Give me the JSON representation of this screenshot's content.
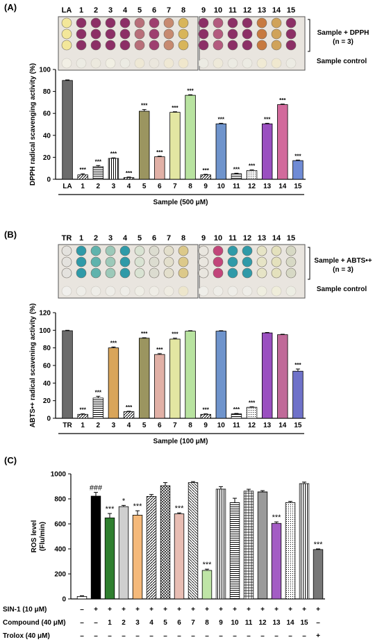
{
  "panels": {
    "a": "(A)",
    "b": "(B)",
    "c": "(C)"
  },
  "plate_a": {
    "columns": [
      "LA",
      "1",
      "2",
      "3",
      "4",
      "5",
      "6",
      "7",
      "8",
      "9",
      "10",
      "11",
      "12",
      "13",
      "14",
      "15"
    ],
    "note1": "Sample + DPPH",
    "note2": "(n = 3)",
    "note3": "Sample control",
    "well_colors": [
      "#f3e79a",
      "#8c2f66",
      "#8c2f66",
      "#8c2f66",
      "#8c2f66",
      "#b86f7a",
      "#9e3f6f",
      "#c78a70",
      "#d8b55a",
      "#8c2f66",
      "#b35a7e",
      "#8c2f66",
      "#8c2f66",
      "#c77a40",
      "#d0a35a",
      "#8c2f66"
    ],
    "control_colors": [
      "#f2efe5",
      "#ecebe3",
      "#ece9de",
      "#f1efe3",
      "#ecebe3",
      "#eee8d5",
      "#ebe7dd",
      "#efe8d4",
      "#f0e7cc",
      "#ecebe3",
      "#eee9d9",
      "#ecebe3",
      "#ecebe3",
      "#f0ead4",
      "#f0e8cf",
      "#ecebe3"
    ]
  },
  "plate_b": {
    "columns": [
      "TR",
      "1",
      "2",
      "3",
      "4",
      "5",
      "6",
      "7",
      "8",
      "9",
      "10",
      "11",
      "12",
      "13",
      "14",
      "15"
    ],
    "note1": "Sample + ABTS•+",
    "note2": "(n = 3)",
    "note3": "Sample control",
    "well_colors": [
      "#e4e2de",
      "#2f9aa8",
      "#5fb3ad",
      "#9cc9b9",
      "#2f9aa8",
      "#d9e3d3",
      "#dcdcd0",
      "#e3dfcc",
      "#dcc98a",
      "#e9e6df",
      "#c2457a",
      "#2f9aa8",
      "#2f9aa8",
      "#e6e4c6",
      "#e4e1bd",
      "#d7d9c5"
    ],
    "control_colors": [
      "#f0efec",
      "#eeede8",
      "#eeede8",
      "#eeede8",
      "#eeede8",
      "#efeee6",
      "#efede6",
      "#efece2",
      "#ede6cc",
      "#efeee9",
      "#eeede8",
      "#eeede8",
      "#eeede8",
      "#efeee0",
      "#efedda",
      "#ecede3"
    ]
  },
  "chart_data": [
    {
      "type": "bar",
      "title": "",
      "xlabel": "Sample (500 μM)",
      "ylabel": "DPPH radical scavenging activity (%)",
      "ylim": [
        0,
        100
      ],
      "yticks": [
        "0",
        "20",
        "40",
        "60",
        "80",
        "100"
      ],
      "categories": [
        "LA",
        "1",
        "2",
        "3",
        "4",
        "5",
        "6",
        "7",
        "8",
        "9",
        "10",
        "11",
        "12",
        "13",
        "14",
        "15"
      ],
      "values": [
        90,
        4,
        11.5,
        19,
        1.5,
        62,
        20.5,
        61,
        76.5,
        4,
        50.5,
        5,
        8,
        50.5,
        68,
        17
      ],
      "errors": [
        0.5,
        1,
        1,
        0.5,
        0.5,
        1.5,
        0.5,
        0.5,
        0.5,
        0.5,
        0.5,
        0.5,
        0.5,
        0.5,
        0.5,
        0.5
      ],
      "significance": [
        "",
        "***",
        "***",
        "***",
        "***",
        "***",
        "***",
        "***",
        "***",
        "***",
        "***",
        "***",
        "***",
        "***",
        "***",
        "***"
      ],
      "colors": [
        "#6b6b6b",
        "#ffffff",
        "#ffffff",
        "#ffffff",
        "#ffffff",
        "#9b9560",
        "#e1b0a6",
        "#e3e6a2",
        "#b8e3a0",
        "#ffffff",
        "#6f94cc",
        "#ffffff",
        "#ffffff",
        "#9a4fc0",
        "#d26a9c",
        "#6f8bd5"
      ],
      "patterns": [
        "solid",
        "diag",
        "hlines",
        "vlines",
        "diag",
        "solid",
        "solid",
        "solid",
        "solid",
        "diag",
        "solid",
        "hlines",
        "dots",
        "solid",
        "solid",
        "solid"
      ]
    },
    {
      "type": "bar",
      "title": "",
      "xlabel": "Sample (100 μM)",
      "ylabel": "ABTS•+ radical scavening activity (%)",
      "ylim": [
        0,
        120
      ],
      "yticks": [
        "0",
        "20",
        "40",
        "60",
        "80",
        "100",
        "120"
      ],
      "categories": [
        "TR",
        "1",
        "2",
        "3",
        "4",
        "5",
        "6",
        "7",
        "8",
        "9",
        "10",
        "11",
        "12",
        "13",
        "14",
        "15"
      ],
      "values": [
        99.5,
        4.5,
        23,
        80,
        7.5,
        91,
        72.5,
        90,
        99,
        4.5,
        99,
        5,
        12.5,
        97,
        95,
        53.5
      ],
      "errors": [
        0.5,
        0.5,
        2,
        1,
        0.5,
        0.5,
        1,
        1,
        0.5,
        0.5,
        0.5,
        0.5,
        0.5,
        0.5,
        0.5,
        2.5
      ],
      "significance": [
        "",
        "***",
        "***",
        "***",
        "***",
        "***",
        "***",
        "***",
        "",
        "***",
        "",
        "***",
        "***",
        "",
        "",
        "***"
      ],
      "colors": [
        "#6b6b6b",
        "#ffffff",
        "#ffffff",
        "#d9a55a",
        "#ffffff",
        "#9b9560",
        "#e1b0a6",
        "#e3e6a2",
        "#b8e3a0",
        "#ffffff",
        "#6f94cc",
        "#ffffff",
        "#ffffff",
        "#9a4fc0",
        "#c06a99",
        "#6f72c9"
      ],
      "patterns": [
        "solid",
        "diag",
        "hlines",
        "solid",
        "diag",
        "solid",
        "solid",
        "solid",
        "solid",
        "diag",
        "solid",
        "hlines",
        "dots",
        "solid",
        "solid",
        "solid"
      ]
    },
    {
      "type": "bar",
      "title": "",
      "xlabel": "",
      "ylabel": "ROS level (Flu/min)",
      "ylabel_line1": "ROS level",
      "ylabel_line2": "(Flu/min)",
      "ylim": [
        0,
        1000
      ],
      "yticks": [
        "0",
        "200",
        "400",
        "600",
        "800",
        "1000"
      ],
      "n_bars": 18,
      "values": [
        20,
        822,
        648,
        738,
        670,
        820,
        905,
        680,
        930,
        228,
        878,
        770,
        862,
        856,
        604,
        770,
        922,
        395
      ],
      "errors": [
        5,
        30,
        35,
        10,
        35,
        15,
        25,
        8,
        8,
        10,
        20,
        35,
        15,
        10,
        12,
        10,
        12,
        5
      ],
      "significance": [
        "",
        "###",
        "***",
        "*",
        "***",
        "",
        "",
        "***",
        "",
        "***",
        "",
        "",
        "",
        "",
        "***",
        "",
        "",
        "***"
      ],
      "colors": [
        "#ffffff",
        "#000000",
        "#2f7f2f",
        "#cfcfcf",
        "#f5b97a",
        "#ffffff",
        "#dcdcdc",
        "#e8bdb3",
        "#ffffff",
        "#bfe5a6",
        "#ffffff",
        "#ffffff",
        "#ffffff",
        "#ffffff",
        "#a35cc4",
        "#ffffff",
        "#ffffff",
        "#777777"
      ],
      "patterns": [
        "solid",
        "solid",
        "solid",
        "solid",
        "solid",
        "diag",
        "cross",
        "solid",
        "hatch",
        "solid",
        "vlines",
        "hlines",
        "grid",
        "hlinesdense",
        "solid",
        "dots",
        "vlines",
        "solid"
      ],
      "rows": [
        {
          "label": "SIN-1 (10 μM)",
          "values": [
            "–",
            "+",
            "+",
            "+",
            "+",
            "+",
            "+",
            "+",
            "+",
            "+",
            "+",
            "+",
            "+",
            "+",
            "+",
            "+",
            "+",
            "+"
          ]
        },
        {
          "label": "Compound (40 μM)",
          "values": [
            "–",
            "–",
            "1",
            "2",
            "3",
            "4",
            "5",
            "6",
            "7",
            "8",
            "9",
            "10",
            "11",
            "12",
            "13",
            "14",
            "15",
            "–"
          ]
        },
        {
          "label": "Trolox (40 μM)",
          "values": [
            "–",
            "–",
            "–",
            "–",
            "–",
            "–",
            "–",
            "–",
            "–",
            "–",
            "–",
            "–",
            "–",
            "–",
            "–",
            "–",
            "–",
            "+"
          ]
        }
      ]
    }
  ]
}
